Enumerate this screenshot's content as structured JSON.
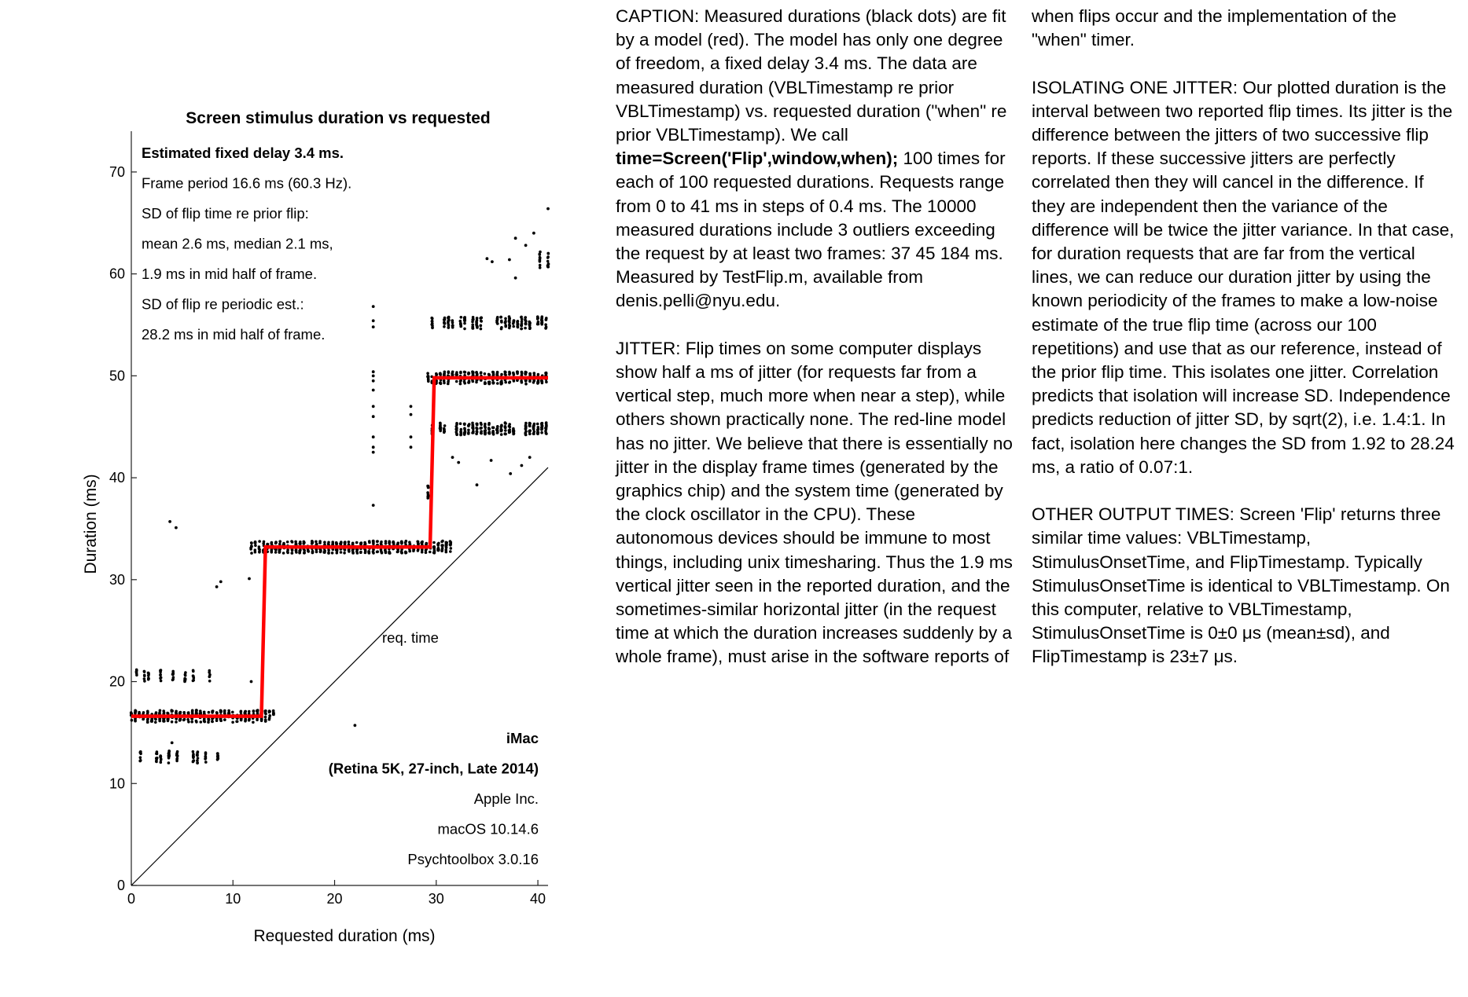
{
  "chart_data": {
    "type": "scatter",
    "title": "Screen stimulus duration vs requested",
    "xlabel": "Requested duration (ms)",
    "ylabel": "Duration (ms)",
    "xlim": [
      0,
      41
    ],
    "ylim": [
      0,
      74
    ],
    "xticks": [
      0,
      10,
      20,
      30,
      40
    ],
    "yticks": [
      0,
      10,
      20,
      30,
      40,
      50,
      60,
      70
    ],
    "grid": false,
    "info_lines": [
      "Estimated fixed delay 3.4 ms.",
      "Frame period 16.6 ms (60.3 Hz).",
      "SD of flip time re prior flip:",
      "mean 2.6 ms, median 2.1 ms,",
      "1.9 ms in mid half of frame.",
      "SD of flip re periodic est.:",
      "28.2 ms in mid half of frame."
    ],
    "device_lines": [
      "iMac",
      "(Retina 5K, 27-inch, Late 2014)",
      "Apple Inc.",
      "macOS 10.14.6",
      "Psychtoolbox 3.0.16"
    ],
    "identity_line_label": "req. time",
    "series": [
      {
        "label": "model",
        "color": "#ff0000",
        "x": [
          0,
          12.8,
          13.2,
          29.4,
          29.8,
          41
        ],
        "y": [
          16.6,
          16.6,
          33.2,
          33.2,
          49.8,
          49.8
        ]
      },
      {
        "label": "identity",
        "color": "#000000",
        "x": [
          0,
          41
        ],
        "y": [
          0,
          41
        ]
      }
    ],
    "clusters": [
      {
        "x": [
          0,
          14.0
        ],
        "y_center": 16.6,
        "y_spread": 0.6,
        "density": 1.0
      },
      {
        "x": [
          0.5,
          8.6
        ],
        "y_center": 20.6,
        "y_spread": 0.6,
        "density": 0.35
      },
      {
        "x": [
          0.5,
          8.6
        ],
        "y_center": 12.6,
        "y_spread": 0.6,
        "density": 0.35
      },
      {
        "x": [
          11.8,
          31.4
        ],
        "y_center": 33.2,
        "y_spread": 0.6,
        "density": 1.0
      },
      {
        "x": [
          29.2,
          41
        ],
        "y_center": 49.8,
        "y_spread": 0.6,
        "density": 1.0
      },
      {
        "x": [
          29.6,
          41
        ],
        "y_center": 55.2,
        "y_spread": 0.6,
        "density": 0.8
      },
      {
        "x": [
          29.6,
          41
        ],
        "y_center": 44.8,
        "y_spread": 0.6,
        "density": 0.8
      },
      {
        "x": [
          29.2,
          30.4
        ],
        "y_center": 38.6,
        "y_spread": 0.6,
        "density": 0.5
      },
      {
        "x": [
          40.2,
          41
        ],
        "y_center": 61.4,
        "y_spread": 0.8,
        "density": 0.6
      }
    ],
    "outliers": [
      [
        3.8,
        35.7
      ],
      [
        4.4,
        35.1
      ],
      [
        8.4,
        29.3
      ],
      [
        8.8,
        29.8
      ],
      [
        11.6,
        30.1
      ],
      [
        11.8,
        20.0
      ],
      [
        4.0,
        14.0
      ],
      [
        22.0,
        15.7
      ],
      [
        23.8,
        37.3
      ],
      [
        23.8,
        54.8
      ],
      [
        23.8,
        55.4
      ],
      [
        23.8,
        56.8
      ],
      [
        23.8,
        50.4
      ],
      [
        23.8,
        50.0
      ],
      [
        23.8,
        49.5
      ],
      [
        23.8,
        48.6
      ],
      [
        23.8,
        47.0
      ],
      [
        23.8,
        46.0
      ],
      [
        23.8,
        44.0
      ],
      [
        23.8,
        43.0
      ],
      [
        23.8,
        42.5
      ],
      [
        27.5,
        47.0
      ],
      [
        27.5,
        46.2
      ],
      [
        27.5,
        44.0
      ],
      [
        27.5,
        43.0
      ],
      [
        31.6,
        42.0
      ],
      [
        32.2,
        41.5
      ],
      [
        34.0,
        39.3
      ],
      [
        35.4,
        41.7
      ],
      [
        37.3,
        40.4
      ],
      [
        38.4,
        41.2
      ],
      [
        39.2,
        42.0
      ],
      [
        35.0,
        61.5
      ],
      [
        35.5,
        61.2
      ],
      [
        37.2,
        61.4
      ],
      [
        37.8,
        63.5
      ],
      [
        38.8,
        62.8
      ],
      [
        37.8,
        59.6
      ],
      [
        39.6,
        64.0
      ],
      [
        41.0,
        66.4
      ]
    ]
  },
  "caption": {
    "col1_para1": "CAPTION: Measured durations (black dots) are fit by a model (red). The model has only one degree of freedom, a fixed delay 3.4 ms. The data are measured duration (VBLTimestamp re prior VBLTimestamp) vs. requested duration (\"when\" re prior VBLTimestamp). We call",
    "col1_code": "time=Screen('Flip',window,when);",
    "col1_para1_end": "100 times for each of 100 requested durations. Requests range from 0 to 41 ms in steps of 0.4 ms. The 10000 measured durations include 3 outliers exceeding the request by at least two frames: 37 45 184 ms. Measured by TestFlip.m, available from denis.pelli@nyu.edu.",
    "col1_para2": "JITTER: Flip times on some computer displays show half a ms of jitter (for requests far from a vertical step, much more when near a step), while others shown practically none. The red-line model has no jitter. We believe that there is essentially no jitter in the display frame times (generated by the graphics chip) and the system time (generated by the clock oscillator in the CPU). These autonomous devices should be immune to most things, including unix timesharing. Thus the 1.9 ms vertical jitter seen in the reported duration, and the sometimes-similar horizontal jitter (in the request time at which the duration increases suddenly by a whole frame), must arise in the software reports of",
    "col2_para1": "when flips occur and the implementation of the \"when\" timer.",
    "col2_para2": "ISOLATING ONE JITTER: Our plotted duration is the interval between two reported flip times. Its jitter is the difference between the  jitters of two successive flip reports. If these successive jitters are perfectly correlated then they will cancel in the difference. If they are independent then the variance of the difference will be twice the jitter variance. In that case, for duration requests that are far from the vertical lines, we can reduce our duration jitter by using the known periodicity of the frames to make a low-noise estimate of the true flip time (across our 100 repetitions) and use that as our reference, instead of the prior flip time. This isolates one jitter. Correlation predicts that isolation will increase SD. Independence predicts reduction of jitter SD, by sqrt(2), i.e. 1.4:1. In fact, isolation here changes the SD from 1.92 to 28.24 ms, a ratio of 0.07:1.",
    "col2_para3": "OTHER OUTPUT TIMES: Screen 'Flip' returns three similar time values: VBLTimestamp, StimulusOnsetTime, and FlipTimestamp. Typically StimulusOnsetTime is identical to VBLTimestamp. On this computer, relative to VBLTimestamp, StimulusOnsetTime is 0±0 μs (mean±sd), and FlipTimestamp is 23±7 μs."
  }
}
